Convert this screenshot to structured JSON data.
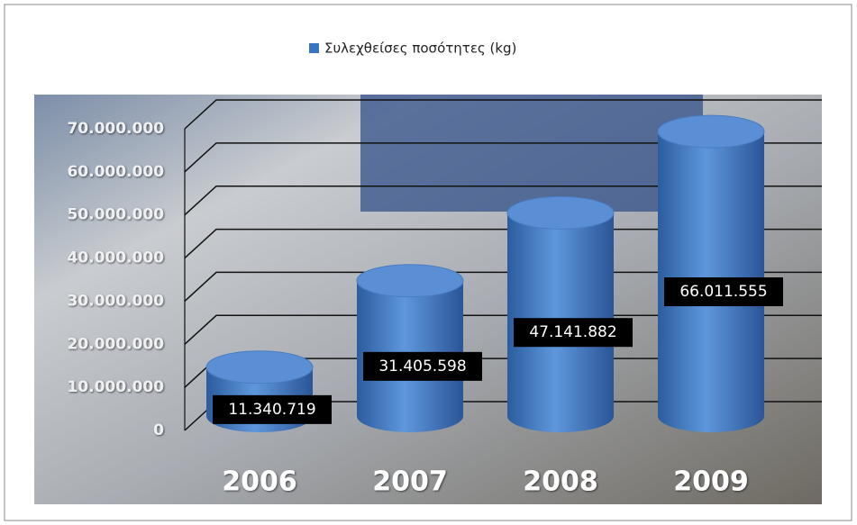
{
  "chart_data": {
    "type": "bar3d",
    "legend": "Συλεχθείσες ποσότητες (kg)",
    "categories": [
      "2006",
      "2007",
      "2008",
      "2009"
    ],
    "values": [
      11340719,
      31405598,
      47141882,
      66011555
    ],
    "value_labels": [
      "11.340.719",
      "31.405.598",
      "47.141.882",
      "66.011.555"
    ],
    "color": "#3a74c0",
    "ylim": [
      0,
      70000000
    ],
    "yticks": [
      0,
      {
        "value": 10000000,
        "label": "10.000.000"
      },
      {
        "value": 20000000,
        "label": "20.000.000"
      },
      {
        "value": 30000000,
        "label": "30.000.000"
      },
      {
        "value": 40000000,
        "label": "40.000.000"
      },
      {
        "value": 50000000,
        "label": "50.000.000"
      },
      {
        "value": 60000000,
        "label": "60.000.000"
      },
      {
        "value": 70000000,
        "label": "70.000.000"
      }
    ],
    "grid": true
  }
}
